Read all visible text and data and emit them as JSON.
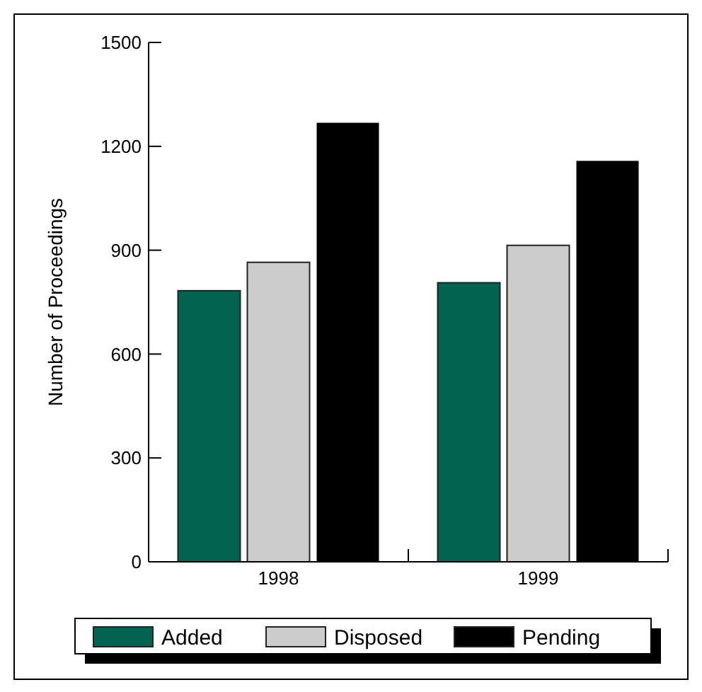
{
  "chart_data": {
    "type": "bar",
    "ylabel": "Number of Proceedings",
    "categories": [
      "1998",
      "1999"
    ],
    "series": [
      {
        "name": "Added",
        "color": "#006450",
        "values": [
          783,
          806
        ]
      },
      {
        "name": "Disposed",
        "color": "#cccccc",
        "values": [
          865,
          914
        ]
      },
      {
        "name": "Pending",
        "color": "#000000",
        "values": [
          1268,
          1158
        ]
      }
    ],
    "ylim": [
      0,
      1500
    ],
    "yticks": [
      0,
      300,
      600,
      900,
      1200,
      1500
    ],
    "grid": false,
    "legend": "bottom"
  }
}
